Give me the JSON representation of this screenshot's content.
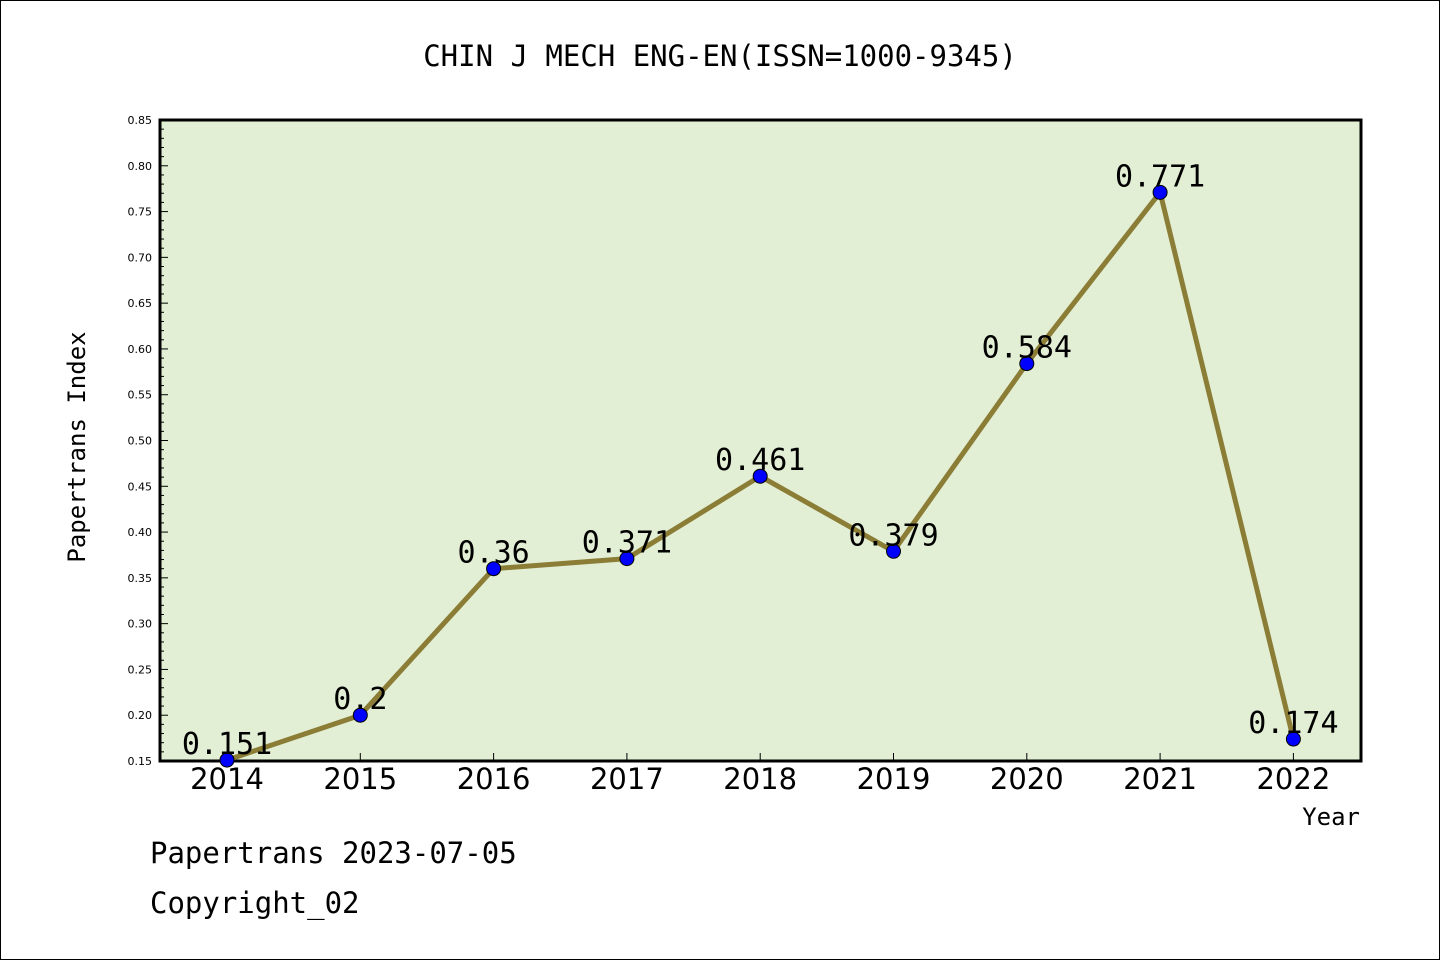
{
  "chart_data": {
    "type": "line",
    "title": "CHIN J MECH ENG-EN(ISSN=1000-9345)",
    "xlabel": "Year",
    "ylabel": "Papertrans Index",
    "categories": [
      "2014",
      "2015",
      "2016",
      "2017",
      "2018",
      "2019",
      "2020",
      "2021",
      "2022"
    ],
    "values": [
      0.151,
      0.2,
      0.36,
      0.371,
      0.461,
      0.379,
      0.584,
      0.771,
      0.174
    ],
    "data_labels": [
      "0.151",
      "0.2",
      "0.36",
      "0.371",
      "0.461",
      "0.379",
      "0.584",
      "0.771",
      "0.174"
    ],
    "yticks": [
      "0.15",
      "0.20",
      "0.25",
      "0.30",
      "0.35",
      "0.40",
      "0.45",
      "0.50",
      "0.55",
      "0.60",
      "0.65",
      "0.70",
      "0.75",
      "0.80",
      "0.85"
    ],
    "ylim": [
      0.15,
      0.85
    ],
    "grid": false,
    "colors": {
      "plot_background": "#e2efd4",
      "line": "#8b7d35",
      "marker": "#0000ff"
    }
  },
  "footer": {
    "source": "Papertrans 2023-07-05",
    "copyright": "Copyright_02"
  }
}
